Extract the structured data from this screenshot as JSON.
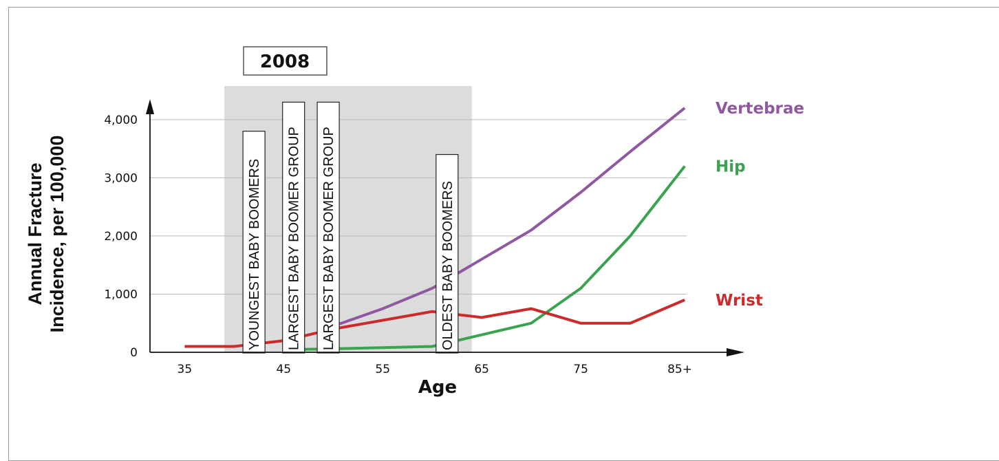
{
  "chart_data": {
    "type": "line",
    "year_label": "2008",
    "xlabel": "Age",
    "ylabel_lines": [
      "Annual Fracture",
      "Incidence, per 100,000"
    ],
    "x_ticks": [
      {
        "value": 35,
        "label": "35"
      },
      {
        "value": 45,
        "label": "45"
      },
      {
        "value": 55,
        "label": "55"
      },
      {
        "value": 65,
        "label": "65"
      },
      {
        "value": 75,
        "label": "75"
      },
      {
        "value": 85,
        "label": "85+"
      }
    ],
    "y_ticks": [
      {
        "value": 0,
        "label": "0"
      },
      {
        "value": 1000,
        "label": "1,000"
      },
      {
        "value": 2000,
        "label": "2,000"
      },
      {
        "value": 3000,
        "label": "3,000"
      },
      {
        "value": 4000,
        "label": "4,000"
      }
    ],
    "xlim": [
      31.5,
      90
    ],
    "ylim": [
      0,
      4400
    ],
    "shaded_region": {
      "x_start": 39,
      "x_end": 64
    },
    "vertical_labels": [
      {
        "x": 42,
        "y_top": 3800,
        "text": "YOUNGEST BABY BOOMERS"
      },
      {
        "x": 46,
        "y_top": 4300,
        "text": "LARGEST BABY BOOMER GROUP"
      },
      {
        "x": 49.5,
        "y_top": 4300,
        "text": "LARGEST BABY BOOMER GROUP"
      },
      {
        "x": 61.5,
        "y_top": 3400,
        "text": "OLDEST BABY BOOMERS"
      }
    ],
    "series": [
      {
        "name": "Vertebrae",
        "color": "#9058a0",
        "points": [
          [
            50,
            450
          ],
          [
            55,
            750
          ],
          [
            60,
            1100
          ],
          [
            65,
            1600
          ],
          [
            70,
            2100
          ],
          [
            75,
            2750
          ],
          [
            80,
            3450
          ],
          [
            85.5,
            4200
          ]
        ]
      },
      {
        "name": "Hip",
        "color": "#3aa34f",
        "points": [
          [
            47,
            50
          ],
          [
            50,
            60
          ],
          [
            55,
            80
          ],
          [
            60,
            100
          ],
          [
            65,
            300
          ],
          [
            70,
            500
          ],
          [
            75,
            1100
          ],
          [
            80,
            2000
          ],
          [
            85.5,
            3200
          ]
        ]
      },
      {
        "name": "Wrist",
        "color": "#cc2b2b",
        "points": [
          [
            35,
            100
          ],
          [
            40,
            100
          ],
          [
            45,
            200
          ],
          [
            50,
            400
          ],
          [
            55,
            550
          ],
          [
            60,
            700
          ],
          [
            65,
            600
          ],
          [
            70,
            750
          ],
          [
            75,
            500
          ],
          [
            80,
            500
          ],
          [
            85.5,
            900
          ]
        ]
      }
    ]
  }
}
